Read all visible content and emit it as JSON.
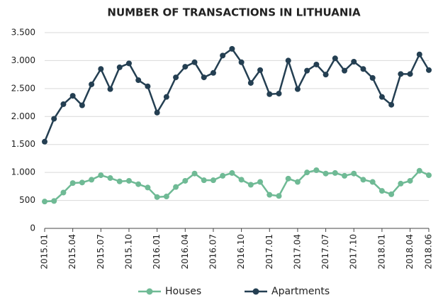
{
  "chart_data": {
    "type": "line",
    "title": "NUMBER OF TRANSACTIONS IN LITHUANIA",
    "categories": [
      "2015.01",
      null,
      null,
      "2015.04",
      null,
      null,
      "2015.07",
      null,
      null,
      "2015.10",
      null,
      null,
      "2016.01",
      null,
      null,
      "2016.04",
      null,
      null,
      "2016.07",
      null,
      null,
      "2016.10",
      null,
      null,
      "2017.01",
      null,
      null,
      "2017.04",
      null,
      null,
      "2017.07",
      null,
      null,
      "2017.10",
      null,
      null,
      "2018.01",
      null,
      null,
      "2018.04",
      null,
      "2018.06"
    ],
    "series": [
      {
        "name": "Houses",
        "color": "#6fba95",
        "values": [
          480,
          490,
          640,
          810,
          820,
          870,
          950,
          900,
          840,
          850,
          790,
          730,
          560,
          570,
          740,
          850,
          980,
          860,
          860,
          940,
          990,
          870,
          780,
          830,
          600,
          580,
          890,
          830,
          1000,
          1040,
          980,
          990,
          940,
          980,
          870,
          830,
          670,
          610,
          800,
          850,
          1030,
          950
        ]
      },
      {
        "name": "Apartments",
        "color": "#243f52",
        "values": [
          1550,
          1960,
          2220,
          2370,
          2200,
          2575,
          2850,
          2490,
          2880,
          2950,
          2650,
          2540,
          2070,
          2350,
          2700,
          2890,
          2970,
          2700,
          2780,
          3090,
          3210,
          2970,
          2600,
          2830,
          2400,
          2410,
          3000,
          2490,
          2820,
          2930,
          2750,
          3040,
          2820,
          2980,
          2850,
          2690,
          2350,
          2210,
          2760,
          2760,
          3110,
          2830
        ]
      }
    ],
    "ylim": [
      0,
      3500
    ],
    "yticks": [
      0,
      500,
      {
        "value": 1000,
        "label": "1.000"
      },
      {
        "value": 1500,
        "label": "1.500"
      },
      {
        "value": 2000,
        "label": "2.000"
      },
      {
        "value": 2500,
        "label": "2.500"
      },
      {
        "value": 3000,
        "label": "3.000"
      },
      {
        "value": 3500,
        "label": "3.500"
      }
    ],
    "grid": true,
    "legend": "bottom"
  }
}
